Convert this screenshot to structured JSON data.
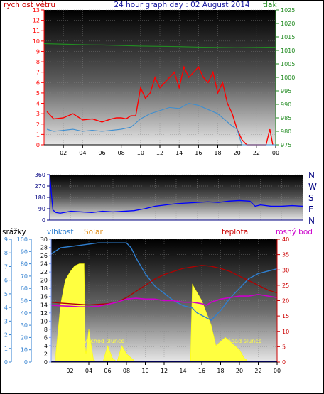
{
  "title": "24 hour graph day : 02 August 2014",
  "colors": {
    "wind": "#ff0000",
    "gust_line": "#3f8fd0",
    "pressure": "#228b22",
    "direction": "#0000ff",
    "humidity": "#2f7fd0",
    "solar": "#ffff40",
    "temperature": "#b00000",
    "dewpoint": "#cc00cc",
    "rain": "#0000aa",
    "axis_left": "#ff0000",
    "axis_right_top": "#228b22",
    "axis_dir": "#000080",
    "temp_axis": "#cc0000",
    "solar_label": "#e09020",
    "hum_axis": "#2f7fd0",
    "rain_axis": "#2f7fd0"
  },
  "chart_data": [
    {
      "type": "line",
      "title": "24 hour graph day : 02 August 2014",
      "left_axis_label": "rychlost větru",
      "right_axis_label": "tlak",
      "x_ticks": [
        "02",
        "04",
        "06",
        "08",
        "10",
        "12",
        "14",
        "16",
        "18",
        "20",
        "22",
        "00"
      ],
      "x_range_hours": [
        0,
        24
      ],
      "y_left": {
        "min": 0,
        "max": 13,
        "ticks": [
          "0",
          "1",
          "2",
          "3",
          "4",
          "5",
          "6",
          "7",
          "8",
          "9",
          "10",
          "11",
          "12",
          "13"
        ]
      },
      "y_right": {
        "min": 975,
        "max": 1025,
        "ticks": [
          "975",
          "980",
          "985",
          "990",
          "995",
          "1000",
          "1005",
          "1010",
          "1015",
          "1020",
          "1025"
        ]
      },
      "series": [
        {
          "name": "",
          "role": "wind_gust",
          "axis": "left",
          "x": [
            0.3,
            1,
            2,
            3,
            4,
            5,
            6,
            7,
            7.5,
            8,
            8.5,
            9,
            9.5,
            10,
            10.5,
            11,
            11.5,
            12,
            12.5,
            13,
            13.5,
            14,
            14.5,
            15,
            15.5,
            16,
            16.5,
            17,
            17.5,
            18,
            18.5,
            19,
            19.5,
            20,
            20.5,
            21,
            21.5,
            22,
            22.5,
            23,
            23.4,
            23.7
          ],
          "y": [
            3.2,
            2.5,
            2.6,
            3.0,
            2.4,
            2.5,
            2.2,
            2.5,
            2.6,
            2.6,
            2.5,
            2.8,
            2.8,
            5.5,
            4.5,
            5.0,
            6.5,
            5.5,
            6.0,
            6.5,
            7.0,
            5.5,
            7.5,
            6.5,
            7.0,
            7.5,
            6.5,
            6.0,
            7.0,
            5.0,
            6.0,
            4.0,
            3.0,
            1.5,
            0.5,
            0.0,
            0.0,
            0.0,
            0.0,
            0.0,
            1.5,
            0.0
          ]
        },
        {
          "name": "",
          "role": "wind_speed",
          "axis": "left",
          "x": [
            0.3,
            1,
            2,
            3,
            4,
            5,
            6,
            7,
            8,
            9,
            10,
            11,
            12,
            13,
            14,
            15,
            16,
            17,
            18,
            19,
            19.5,
            20,
            20.5,
            21,
            22,
            23,
            24
          ],
          "y": [
            1.5,
            1.3,
            1.4,
            1.5,
            1.3,
            1.4,
            1.3,
            1.4,
            1.5,
            1.7,
            2.5,
            3.0,
            3.3,
            3.6,
            3.5,
            4.0,
            3.8,
            3.4,
            3.0,
            2.2,
            1.8,
            1.5,
            0.0,
            0.0,
            0.0,
            0.0,
            0.0
          ]
        },
        {
          "name": "",
          "role": "pressure",
          "axis": "right",
          "x": [
            0,
            2,
            4,
            6,
            8,
            10,
            12,
            14,
            16,
            18,
            20,
            22,
            24
          ],
          "y": [
            1012.5,
            1012.3,
            1012.1,
            1012.0,
            1011.8,
            1011.6,
            1011.5,
            1011.4,
            1011.2,
            1011.1,
            1011.0,
            1011.1,
            1011.2
          ]
        }
      ]
    },
    {
      "type": "line",
      "x_range_hours": [
        0,
        24
      ],
      "y_left": {
        "min": 0,
        "max": 360,
        "ticks": [
          "0",
          "90",
          "180",
          "270",
          "360"
        ]
      },
      "compass_labels": [
        "N",
        "W",
        "S",
        "E",
        "N"
      ],
      "series": [
        {
          "name": "",
          "role": "wind_direction",
          "x": [
            0,
            0.3,
            0.6,
            1,
            2,
            3,
            4,
            5,
            6,
            7,
            8,
            9,
            10,
            11,
            12,
            13,
            14,
            15,
            16,
            17,
            18,
            19,
            19.5,
            20,
            21,
            22,
            23,
            24
          ],
          "y": [
            355,
            80,
            60,
            55,
            70,
            65,
            60,
            70,
            65,
            70,
            75,
            90,
            110,
            120,
            130,
            135,
            140,
            145,
            140,
            150,
            155,
            150,
            110,
            120,
            110,
            110,
            115,
            110
          ]
        }
      ]
    },
    {
      "type": "line",
      "x_ticks": [
        "02",
        "04",
        "06",
        "08",
        "10",
        "12",
        "14",
        "16",
        "18",
        "20",
        "22",
        "00"
      ],
      "x_range_hours": [
        0,
        24
      ],
      "axis_labels": {
        "rain": "srážky",
        "humidity": "vlhkost",
        "solar": "Solar",
        "temperature": "teplota",
        "dewpoint": "rosný bod"
      },
      "y_rain": {
        "ticks": [
          "0",
          "1",
          "2",
          "3",
          "4",
          "5",
          "6",
          "7",
          "8",
          "9"
        ]
      },
      "y_humidity": {
        "min": 0,
        "max": 100,
        "ticks": [
          "0",
          "10",
          "20",
          "30",
          "40",
          "50",
          "60",
          "70",
          "80",
          "90",
          "100"
        ]
      },
      "y_solar": {
        "min": 0,
        "max": 30,
        "ticks": [
          "0",
          "2",
          "4",
          "6",
          "8",
          "10",
          "12",
          "14",
          "16",
          "18",
          "20",
          "22",
          "24",
          "26",
          "28",
          "30"
        ]
      },
      "y_temp": {
        "min": 0,
        "max": 40,
        "ticks": [
          "0",
          "5",
          "10",
          "15",
          "20",
          "25",
          "30",
          "35",
          "40"
        ]
      },
      "annotations": [
        "východ slunce",
        "západ slunce"
      ],
      "series": [
        {
          "name": "",
          "role": "humidity",
          "axis": "humidity",
          "x": [
            0,
            1,
            2,
            3,
            4,
            5,
            6,
            7,
            8,
            8.5,
            9,
            10,
            11,
            12,
            13,
            14,
            15,
            15.5,
            16,
            17,
            18,
            19,
            20,
            21,
            22,
            23,
            24
          ],
          "y": [
            88,
            93,
            94,
            95,
            96,
            97,
            97,
            97,
            97,
            93,
            85,
            72,
            62,
            56,
            50,
            46,
            44,
            40,
            38,
            34,
            42,
            52,
            60,
            68,
            72,
            74,
            76
          ]
        },
        {
          "name": "",
          "role": "temperature",
          "axis": "temp",
          "x": [
            0,
            1,
            2,
            3,
            4,
            5,
            6,
            7,
            8,
            9,
            10,
            11,
            12,
            13,
            14,
            15,
            16,
            17,
            18,
            19,
            20,
            21,
            22,
            23,
            24
          ],
          "y": [
            19.5,
            19.2,
            19.0,
            18.8,
            18.6,
            18.8,
            19.0,
            19.5,
            21,
            23,
            25,
            27,
            28.5,
            29.5,
            30.5,
            31,
            31.5,
            31.2,
            30.5,
            29.5,
            28,
            26.5,
            25,
            23.5,
            22.5
          ]
        },
        {
          "name": "",
          "role": "dewpoint",
          "axis": "temp",
          "x": [
            0,
            1,
            2,
            3,
            4,
            5,
            6,
            7,
            8,
            9,
            10,
            11,
            12,
            13,
            14,
            15,
            16,
            16.5,
            17,
            18,
            19,
            20,
            21,
            22,
            23,
            24
          ],
          "y": [
            18.5,
            18.3,
            18.2,
            18.0,
            18.0,
            18.2,
            18.8,
            19.5,
            20.5,
            20.8,
            20.5,
            20.5,
            20.0,
            20.0,
            19.5,
            19.5,
            19.0,
            18.5,
            19.5,
            20.5,
            21.0,
            21.5,
            21.5,
            22.0,
            21.5,
            21.0
          ]
        },
        {
          "name": "",
          "role": "solar",
          "axis": "solar",
          "x": [
            0.5,
            1,
            1.5,
            2,
            2.5,
            3,
            3.5,
            3.6,
            3.7,
            4,
            4.5,
            5,
            5.5,
            6,
            6.5,
            7,
            7.5,
            8,
            8.5,
            9,
            9.5,
            10,
            11,
            12,
            13,
            14,
            14.8,
            15,
            15.5,
            16,
            16.5,
            17,
            17.5,
            18,
            18.5,
            19,
            19.5,
            20,
            20.5,
            21,
            22,
            23,
            24
          ],
          "y": [
            2,
            14,
            20,
            22,
            23.5,
            24,
            24,
            4,
            2,
            8,
            0.5,
            0,
            0,
            4,
            1,
            0,
            4,
            2,
            1,
            0,
            0,
            0,
            0,
            0,
            0,
            0,
            0,
            19,
            17,
            15,
            12,
            9,
            4,
            5,
            6,
            5,
            4,
            3,
            1,
            0,
            0,
            0,
            0
          ]
        },
        {
          "name": "",
          "role": "rain",
          "axis": "rain",
          "x": [
            0,
            24
          ],
          "y": [
            0,
            0
          ]
        }
      ]
    }
  ]
}
